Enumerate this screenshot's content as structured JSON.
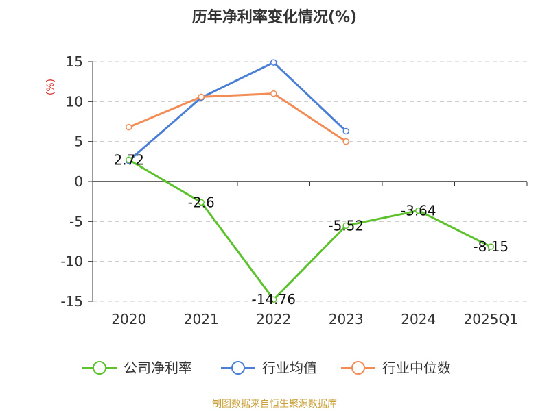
{
  "chart_data": {
    "type": "line",
    "title": "历年净利率变化情况(%)",
    "ylabel": "(%)",
    "categories": [
      "2020",
      "2021",
      "2022",
      "2023",
      "2024",
      "2025Q1"
    ],
    "ylim": [
      -15,
      15
    ],
    "yticks": [
      "15",
      "10",
      "5",
      "0",
      "-5",
      "-10",
      "-15"
    ],
    "grid": true,
    "legend_position": "bottom",
    "series": [
      {
        "name": "公司净利率",
        "color": "#5cc22c",
        "values": [
          2.72,
          -2.6,
          -14.76,
          -5.52,
          -3.64,
          -8.15
        ],
        "labels": [
          "2.72",
          "-2.6",
          "-14.76",
          "-5.52",
          "-3.64",
          "-8.15"
        ]
      },
      {
        "name": "行业均值",
        "color": "#4a7fd6",
        "values": [
          2.6,
          10.5,
          14.9,
          6.3,
          null,
          null
        ]
      },
      {
        "name": "行业中位数",
        "color": "#f28b54",
        "values": [
          6.8,
          10.6,
          11.0,
          5.0,
          null,
          null
        ]
      }
    ]
  },
  "source_text": "制图数据来自恒生聚源数据库",
  "colors": {
    "unit_label": "#d9312b",
    "source_text": "#c9a13a",
    "axis": "#333333",
    "grid": "#c8c8c8"
  }
}
